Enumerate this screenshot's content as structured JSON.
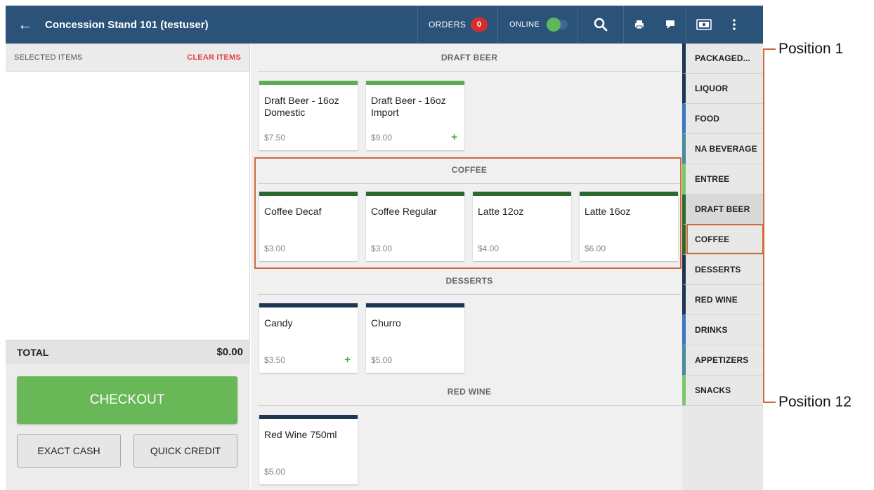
{
  "header": {
    "title": "Concession Stand 101 (testuser)",
    "orders_label": "ORDERS",
    "orders_count": "0",
    "online_label": "ONLINE"
  },
  "selected": {
    "title": "SELECTED ITEMS",
    "clear_label": "CLEAR ITEMS",
    "total_label": "TOTAL",
    "total_value": "$0.00"
  },
  "actions": {
    "checkout": "CHECKOUT",
    "exact_cash": "EXACT CASH",
    "quick_credit": "QUICK CREDIT"
  },
  "sections": [
    {
      "title": "DRAFT BEER",
      "items": [
        {
          "name": "Draft Beer - 16oz Domestic",
          "price": "$7.50",
          "plus": ""
        },
        {
          "name": "Draft Beer - 16oz Import",
          "price": "$9.00",
          "plus": "+"
        }
      ]
    },
    {
      "title": "COFFEE",
      "items": [
        {
          "name": "Coffee Decaf",
          "price": "$3.00",
          "plus": ""
        },
        {
          "name": "Coffee Regular",
          "price": "$3.00",
          "plus": ""
        },
        {
          "name": "Latte 12oz",
          "price": "$4.00",
          "plus": ""
        },
        {
          "name": "Latte 16oz",
          "price": "$6.00",
          "plus": ""
        }
      ]
    },
    {
      "title": "DESSERTS",
      "items": [
        {
          "name": "Candy",
          "price": "$3.50",
          "plus": "+"
        },
        {
          "name": "Churro",
          "price": "$5.00",
          "plus": ""
        }
      ]
    },
    {
      "title": "RED WINE",
      "items": [
        {
          "name": "Red Wine 750ml",
          "price": "$5.00",
          "plus": ""
        }
      ]
    }
  ],
  "categories": [
    {
      "label": "PACKAGED...",
      "color": "#1e3553"
    },
    {
      "label": "LIQUOR",
      "color": "#1e3553"
    },
    {
      "label": "FOOD",
      "color": "#3a78c2"
    },
    {
      "label": "NA BEVERAGE",
      "color": "#4b8a99"
    },
    {
      "label": "ENTREE",
      "color": "#7bc86b"
    },
    {
      "label": "DRAFT BEER",
      "color": "#2b6a2f"
    },
    {
      "label": "COFFEE",
      "color": "#2b6a2f"
    },
    {
      "label": "DESSERTS",
      "color": "#1e3553"
    },
    {
      "label": "RED WINE",
      "color": "#1e3553"
    },
    {
      "label": "DRINKS",
      "color": "#3a78c2"
    },
    {
      "label": "APPETIZERS",
      "color": "#4b8a99"
    },
    {
      "label": "SNACKS",
      "color": "#7bc86b"
    }
  ],
  "annotations": {
    "position_1": "Position 1",
    "position_12": "Position 12"
  },
  "colors": {
    "header_bg": "#2b5278",
    "checkout_bg": "#69b857",
    "badge_red": "#d32f2f",
    "highlight": "#cf6a3a"
  },
  "icons": [
    "back-arrow-icon",
    "search-icon",
    "printer-icon",
    "chat-icon",
    "cash-drawer-icon",
    "more-vert-icon",
    "plus-icon"
  ]
}
